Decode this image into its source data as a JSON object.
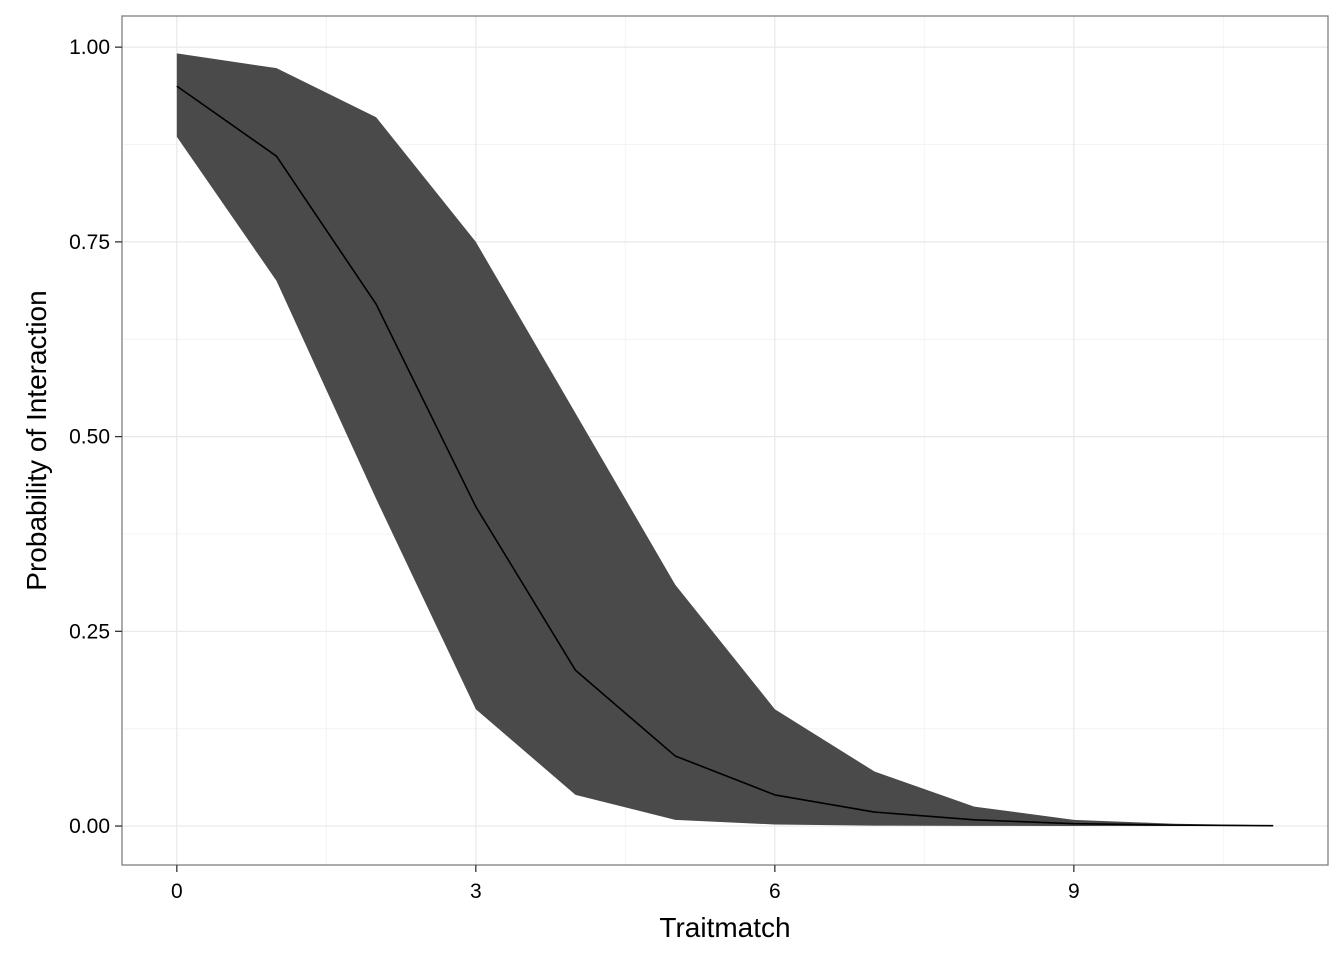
{
  "chart_data": {
    "type": "area",
    "xlabel": "Traitmatch",
    "ylabel": "Probability of Interaction",
    "xlim": [
      -0.55,
      11.55
    ],
    "ylim": [
      -0.05,
      1.04
    ],
    "x_ticks": [
      0,
      3,
      6,
      9
    ],
    "x_tick_labels": [
      "0",
      "3",
      "6",
      "9"
    ],
    "y_ticks": [
      0,
      0.25,
      0.5,
      0.75,
      1.0
    ],
    "y_tick_labels": [
      "0.00",
      "0.25",
      "0.50",
      "0.75",
      "1.00"
    ],
    "grid": true,
    "legend": "none",
    "x": [
      0,
      1,
      2,
      3,
      4,
      5,
      6,
      7,
      8,
      9,
      10,
      11
    ],
    "series": [
      {
        "values": [
          0.95,
          0.86,
          0.67,
          0.41,
          0.2,
          0.09,
          0.04,
          0.018,
          0.008,
          0.003,
          0.0012,
          0.0005
        ]
      }
    ],
    "ribbon": {
      "lower": [
        0.885,
        0.7,
        0.42,
        0.15,
        0.04,
        0.008,
        0.002,
        0.0006,
        0.0002,
        0.0001,
        0.0,
        0.0
      ],
      "upper": [
        0.992,
        0.973,
        0.91,
        0.75,
        0.53,
        0.31,
        0.15,
        0.07,
        0.025,
        0.008,
        0.003,
        0.001
      ]
    },
    "colors": {
      "ribbon": "#4a4a4a",
      "line": "#000000",
      "grid_major": "#e8e8e8",
      "grid_minor": "#f4f4f4",
      "panel_border": "#7f7f7f"
    }
  }
}
